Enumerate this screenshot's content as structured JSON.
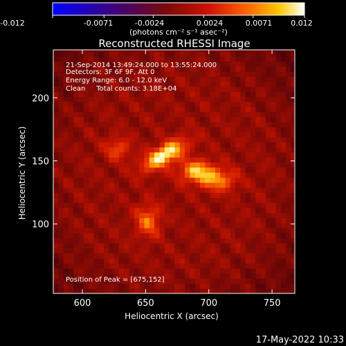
{
  "colorbar": {
    "ticks": [
      "-0.012",
      "-0.0071",
      "-0.0024",
      "0.0024",
      "0.0071",
      "0.012"
    ],
    "units_label": "(photons cm⁻² s⁻¹ asec⁻²)",
    "range": [
      -0.012,
      0.012
    ]
  },
  "info": {
    "time_range": "21-Sep-2014 13:49:24.000 to 13:55:24.000",
    "detectors": "Detectors: 3F 6F 9F, Att 0",
    "energy": "Energy Range: 6.0 - 12.0 keV",
    "clean_total": "Clean     Total counts: 3.18E+04",
    "peak": "Position of Peak = [675,152]"
  },
  "footer_timestamp": "17-May-2022 10:33",
  "chart_data": {
    "type": "heatmap",
    "title": "Reconstructed RHESSI Image",
    "xlabel": "Heliocentric X (arcsec)",
    "ylabel": "Heliocentric Y (arcsec)",
    "xlim": [
      577,
      768
    ],
    "ylim": [
      45,
      238
    ],
    "xticks": [
      600,
      650,
      700,
      750
    ],
    "yticks": [
      100,
      150,
      200
    ],
    "peak_position": [
      675,
      152
    ],
    "colormap": "red-temperature",
    "sources": [
      {
        "x": 665,
        "y": 155,
        "intensity": 1.0
      },
      {
        "x": 690,
        "y": 142,
        "intensity": 0.75
      },
      {
        "x": 708,
        "y": 135,
        "intensity": 0.6
      },
      {
        "x": 628,
        "y": 160,
        "intensity": 0.45
      },
      {
        "x": 652,
        "y": 103,
        "intensity": 0.55
      }
    ]
  }
}
